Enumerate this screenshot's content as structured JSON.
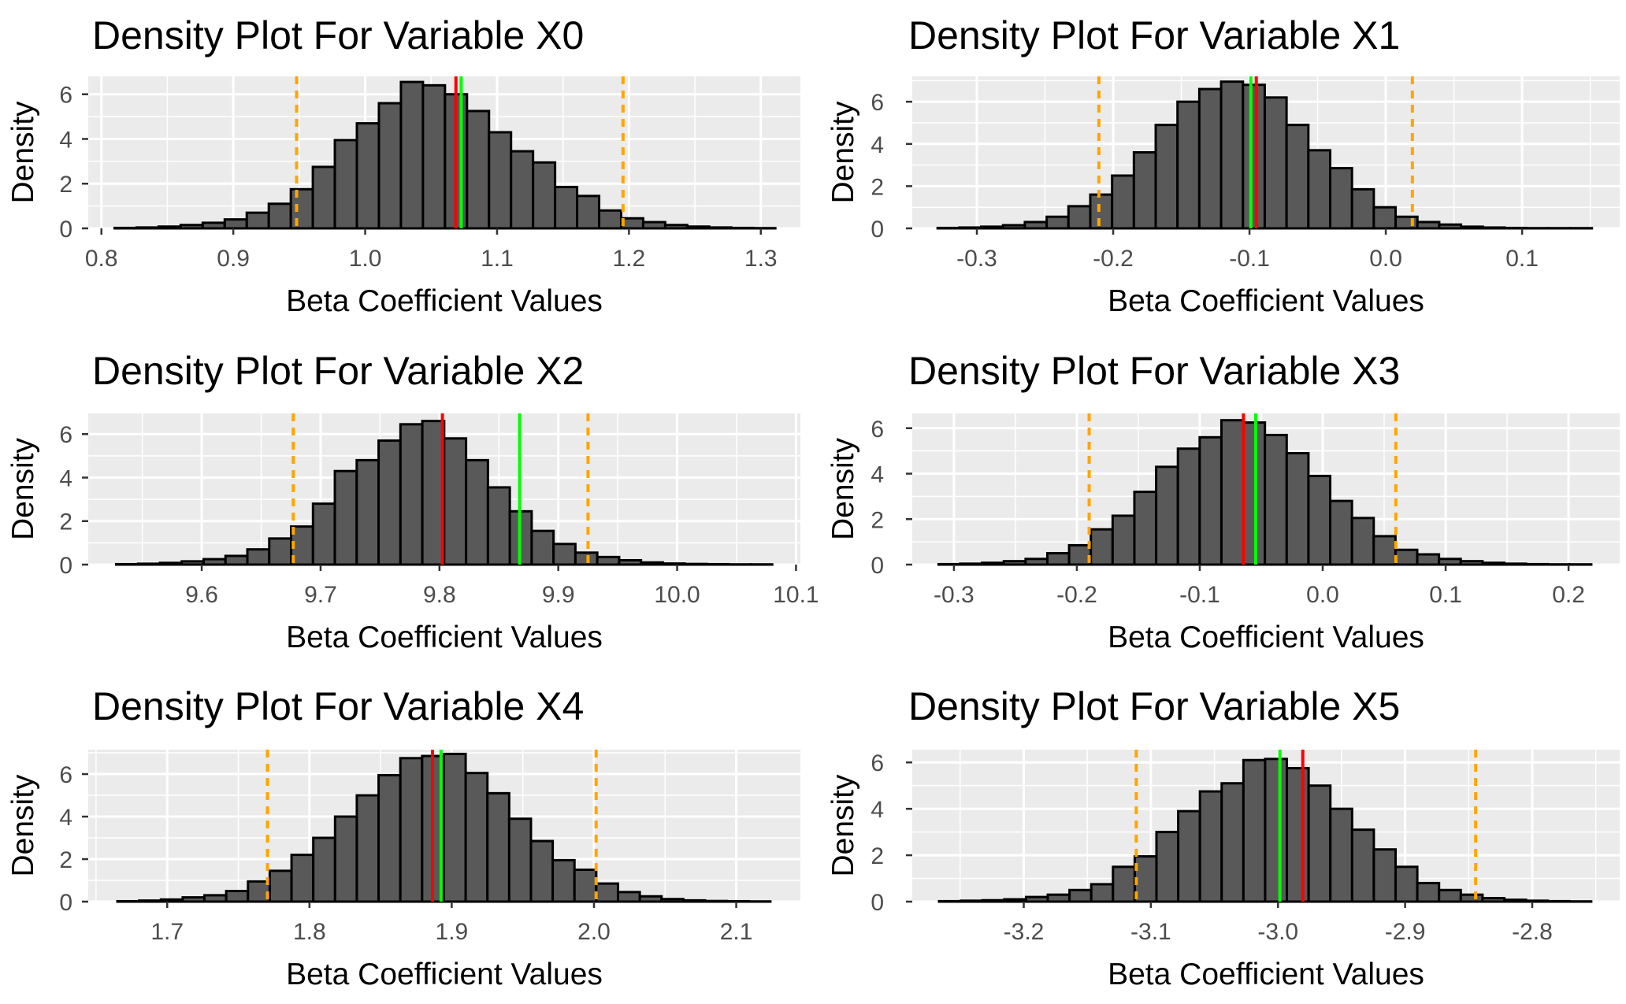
{
  "colors": {
    "panel_bg": "#ebebeb",
    "grid_major": "#ffffff",
    "bar_fill": "#595959",
    "bar_outline": "#000000",
    "red_line": "#ff0000",
    "green_line": "#00ff00",
    "ci_line": "#ffa500"
  },
  "chart_data": [
    {
      "type": "histogram",
      "title": "Density Plot For Variable X0",
      "xlabel": "Beta Coefficient Values",
      "ylabel": "Density",
      "xlim": [
        0.79,
        1.33
      ],
      "ylim": [
        0,
        6.8
      ],
      "x_ticks": [
        0.8,
        0.9,
        1.0,
        1.1,
        1.2,
        1.3
      ],
      "x_tick_labels": [
        "0.8",
        "0.9",
        "1.0",
        "1.1",
        "1.2",
        "1.3"
      ],
      "y_ticks": [
        0,
        2,
        4,
        6
      ],
      "y_tick_labels": [
        "0",
        "2",
        "4",
        "6"
      ],
      "bin_start": 0.81,
      "bin_width": 0.0167,
      "densities": [
        0.02,
        0.04,
        0.08,
        0.15,
        0.25,
        0.4,
        0.7,
        1.1,
        1.75,
        2.75,
        3.95,
        4.7,
        5.6,
        6.55,
        6.4,
        6.0,
        5.25,
        4.3,
        3.45,
        2.95,
        1.85,
        1.45,
        0.8,
        0.45,
        0.28,
        0.15,
        0.08,
        0.04,
        0.02,
        0.01
      ],
      "vlines": {
        "red": 1.0688,
        "green": 1.0728,
        "ci_lower": 0.948,
        "ci_upper": 1.1955
      }
    },
    {
      "type": "histogram",
      "title": "Density Plot For Variable X1",
      "xlabel": "Beta Coefficient Values",
      "ylabel": "Density",
      "xlim": [
        -0.3474,
        0.1716
      ],
      "ylim": [
        0,
        7.2
      ],
      "x_ticks": [
        -0.3,
        -0.2,
        -0.1,
        0.0,
        0.1
      ],
      "x_tick_labels": [
        "-0.3",
        "-0.2",
        "-0.1",
        "0.0",
        "0.1"
      ],
      "y_ticks": [
        0,
        2,
        4,
        6
      ],
      "y_tick_labels": [
        "0",
        "2",
        "4",
        "6"
      ],
      "bin_start": -0.3288,
      "bin_width": 0.016,
      "densities": [
        0.02,
        0.04,
        0.08,
        0.15,
        0.3,
        0.55,
        1.05,
        1.6,
        2.5,
        3.6,
        4.9,
        6.0,
        6.6,
        6.95,
        6.8,
        6.2,
        4.9,
        3.7,
        2.85,
        1.85,
        1.0,
        0.55,
        0.3,
        0.18,
        0.08,
        0.04,
        0.02,
        0.01,
        0.01,
        0.01
      ],
      "vlines": {
        "red": -0.095,
        "green": -0.099,
        "ci_lower": -0.2105,
        "ci_upper": 0.0195
      }
    },
    {
      "type": "histogram",
      "title": "Density Plot For Variable X2",
      "xlabel": "Beta Coefficient Values",
      "ylabel": "Density",
      "xlim": [
        9.5045,
        10.1037
      ],
      "ylim": [
        0,
        6.95
      ],
      "x_ticks": [
        9.6,
        9.7,
        9.8,
        9.9,
        10.0,
        10.1
      ],
      "x_tick_labels": [
        "9.6",
        "9.7",
        "9.8",
        "9.9",
        "10.0",
        "10.1"
      ],
      "y_ticks": [
        0,
        2,
        4,
        6
      ],
      "y_tick_labels": [
        "0",
        "2",
        "4",
        "6"
      ],
      "bin_start": 9.528,
      "bin_width": 0.0184,
      "densities": [
        0.02,
        0.04,
        0.08,
        0.15,
        0.25,
        0.4,
        0.7,
        1.2,
        1.75,
        2.8,
        4.3,
        4.8,
        5.7,
        6.45,
        6.6,
        5.8,
        4.8,
        3.55,
        2.45,
        1.55,
        0.95,
        0.55,
        0.35,
        0.2,
        0.1,
        0.05,
        0.03,
        0.02,
        0.01,
        0.01
      ],
      "vlines": {
        "red": 9.8025,
        "green": 9.8675,
        "ci_lower": 9.677,
        "ci_upper": 9.925
      }
    },
    {
      "type": "histogram",
      "title": "Density Plot For Variable X3",
      "xlabel": "Beta Coefficient Values",
      "ylabel": "Density",
      "xlim": [
        -0.3339,
        0.2416
      ],
      "ylim": [
        0,
        6.65
      ],
      "x_ticks": [
        -0.3,
        -0.2,
        -0.1,
        0.0,
        0.1,
        0.2
      ],
      "x_tick_labels": [
        "-0.3",
        "-0.2",
        "-0.1",
        "0.0",
        "0.1",
        "0.2"
      ],
      "y_ticks": [
        0,
        2,
        4,
        6
      ],
      "y_tick_labels": [
        "0",
        "2",
        "4",
        "6"
      ],
      "bin_start": -0.3125,
      "bin_width": 0.0177,
      "densities": [
        0.02,
        0.04,
        0.08,
        0.15,
        0.25,
        0.5,
        0.85,
        1.55,
        2.15,
        3.2,
        4.3,
        5.1,
        5.6,
        6.35,
        6.25,
        5.7,
        4.9,
        3.9,
        2.8,
        2.05,
        1.25,
        0.65,
        0.45,
        0.25,
        0.15,
        0.08,
        0.04,
        0.02,
        0.01,
        0.01
      ],
      "vlines": {
        "red": -0.0645,
        "green": -0.0545,
        "ci_lower": -0.19,
        "ci_upper": 0.0595
      }
    },
    {
      "type": "histogram",
      "title": "Density Plot For Variable X4",
      "xlabel": "Beta Coefficient Values",
      "ylabel": "Density",
      "xlim": [
        1.6445,
        2.1451
      ],
      "ylim": [
        0,
        7.15
      ],
      "x_ticks": [
        1.7,
        1.8,
        1.9,
        2.0,
        2.1
      ],
      "x_tick_labels": [
        "1.7",
        "1.8",
        "1.9",
        "2.0",
        "2.1"
      ],
      "y_ticks": [
        0,
        2,
        4,
        6
      ],
      "y_tick_labels": [
        "0",
        "2",
        "4",
        "6"
      ],
      "bin_start": 1.665,
      "bin_width": 0.0153,
      "densities": [
        0.02,
        0.05,
        0.1,
        0.2,
        0.3,
        0.5,
        0.95,
        1.45,
        2.2,
        3.0,
        4.0,
        5.0,
        5.95,
        6.75,
        6.85,
        6.95,
        6.05,
        5.1,
        3.9,
        2.85,
        1.95,
        1.5,
        0.85,
        0.45,
        0.25,
        0.12,
        0.06,
        0.03,
        0.02,
        0.01
      ],
      "vlines": {
        "red": 1.8865,
        "green": 1.8925,
        "ci_lower": 1.7705,
        "ci_upper": 2.0015
      }
    },
    {
      "type": "histogram",
      "title": "Density Plot For Variable X5",
      "xlabel": "Beta Coefficient Values",
      "ylabel": "Density",
      "xlim": [
        -3.2877,
        -2.7312
      ],
      "ylim": [
        0,
        6.55
      ],
      "x_ticks": [
        -3.2,
        -3.1,
        -3.0,
        -2.9,
        -2.8
      ],
      "x_tick_labels": [
        "-3.2",
        "-3.1",
        "-3.0",
        "-2.9",
        "-2.8"
      ],
      "y_ticks": [
        0,
        2,
        4,
        6
      ],
      "y_tick_labels": [
        "0",
        "2",
        "4",
        "6"
      ],
      "bin_start": -3.2666,
      "bin_width": 0.0171,
      "densities": [
        0.02,
        0.04,
        0.06,
        0.1,
        0.2,
        0.3,
        0.5,
        0.75,
        1.5,
        1.95,
        3.0,
        3.9,
        4.75,
        5.1,
        6.1,
        6.15,
        5.75,
        5.0,
        4.0,
        3.1,
        2.25,
        1.5,
        0.8,
        0.5,
        0.3,
        0.15,
        0.08,
        0.04,
        0.02,
        0.01
      ],
      "vlines": {
        "red": -2.9805,
        "green": -2.9985,
        "ci_lower": -3.1115,
        "ci_upper": -2.8445
      }
    }
  ]
}
